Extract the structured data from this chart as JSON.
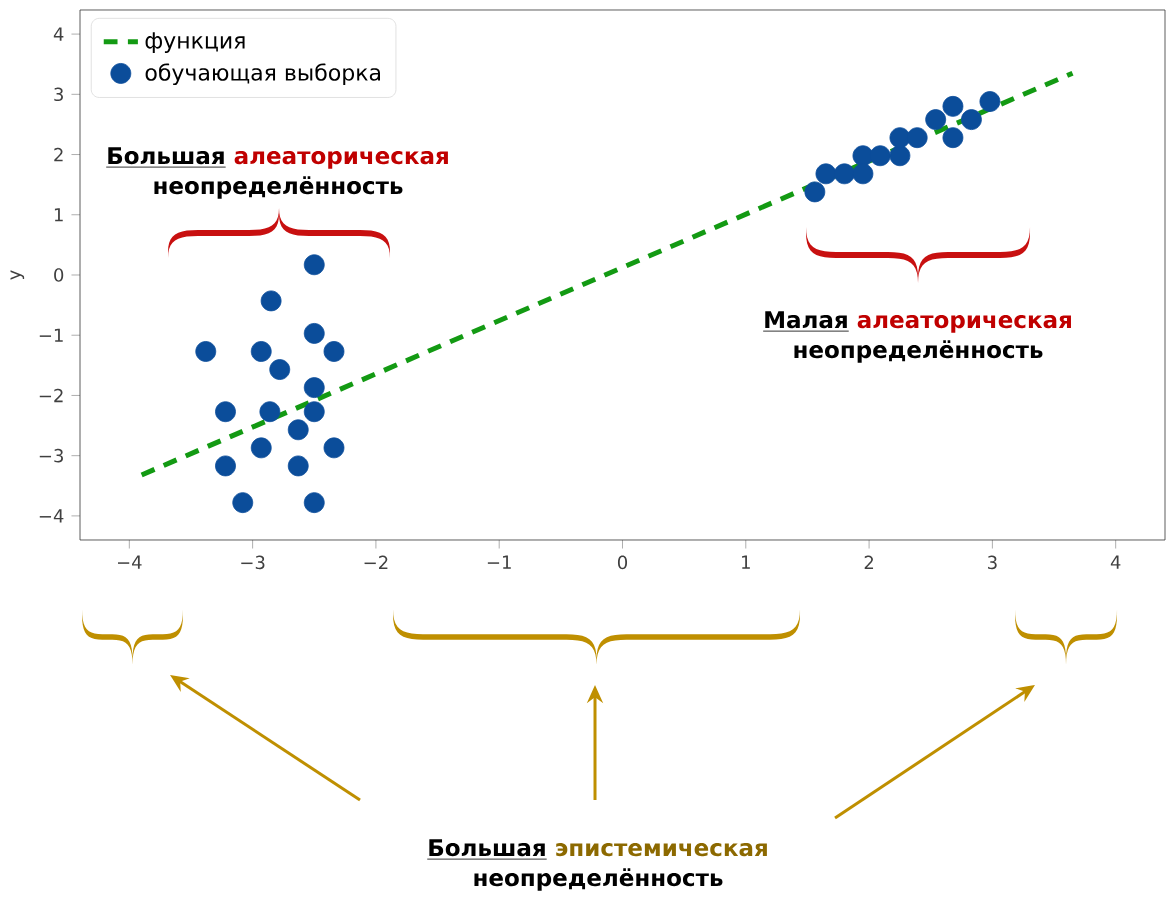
{
  "chart_data": {
    "type": "scatter",
    "ylabel": "y",
    "xlim": [
      -4.4,
      4.4
    ],
    "ylim": [
      -4.4,
      4.4
    ],
    "xticks": [
      {
        "value": -4,
        "label": "−4"
      },
      {
        "value": -3,
        "label": "−3"
      },
      {
        "value": -2,
        "label": "−2"
      },
      {
        "value": -1,
        "label": "−1"
      },
      0,
      1,
      2,
      3,
      4
    ],
    "yticks": [
      {
        "value": -4,
        "label": "−4"
      },
      {
        "value": -3,
        "label": "−3"
      },
      {
        "value": -2,
        "label": "−2"
      },
      {
        "value": -1,
        "label": "−1"
      },
      0,
      1,
      2,
      3,
      4
    ],
    "legend": "top left",
    "series": [
      {
        "name": "функция",
        "type": "line",
        "color": "#139a13",
        "line_style": "dashed",
        "marker": "none",
        "x": [
          -3.9,
          3.65
        ],
        "values": [
          -3.32,
          3.35
        ]
      },
      {
        "name": "обучающая выборка",
        "type": "scatter",
        "color": "#0b4d9a",
        "marker": "circle",
        "x": [
          -2.5,
          -2.85,
          -2.5,
          -3.38,
          -2.93,
          -2.34,
          -2.78,
          -2.5,
          -3.22,
          -2.86,
          -2.5,
          -2.63,
          -2.93,
          -2.34,
          -3.22,
          -2.63,
          -3.08,
          -2.5,
          1.56,
          1.65,
          1.8,
          1.95,
          1.95,
          2.09,
          2.25,
          2.25,
          2.39,
          2.54,
          2.68,
          2.68,
          2.83,
          2.98
        ],
        "values": [
          0.17,
          -0.43,
          -0.97,
          -1.27,
          -1.27,
          -1.27,
          -1.57,
          -1.87,
          -2.27,
          -2.27,
          -2.27,
          -2.57,
          -2.87,
          -2.87,
          -3.17,
          -3.17,
          -3.78,
          -3.78,
          1.38,
          1.68,
          1.68,
          1.98,
          1.68,
          1.98,
          1.98,
          2.28,
          2.28,
          2.58,
          2.8,
          2.28,
          2.58,
          2.88
        ]
      }
    ],
    "annotations": [
      "Большая",
      "алеаторическая",
      "неопределённость",
      "Малая",
      "алеаторическая",
      "неопределённость",
      "Большая",
      "эпистемическая",
      "неопределённость"
    ]
  }
}
